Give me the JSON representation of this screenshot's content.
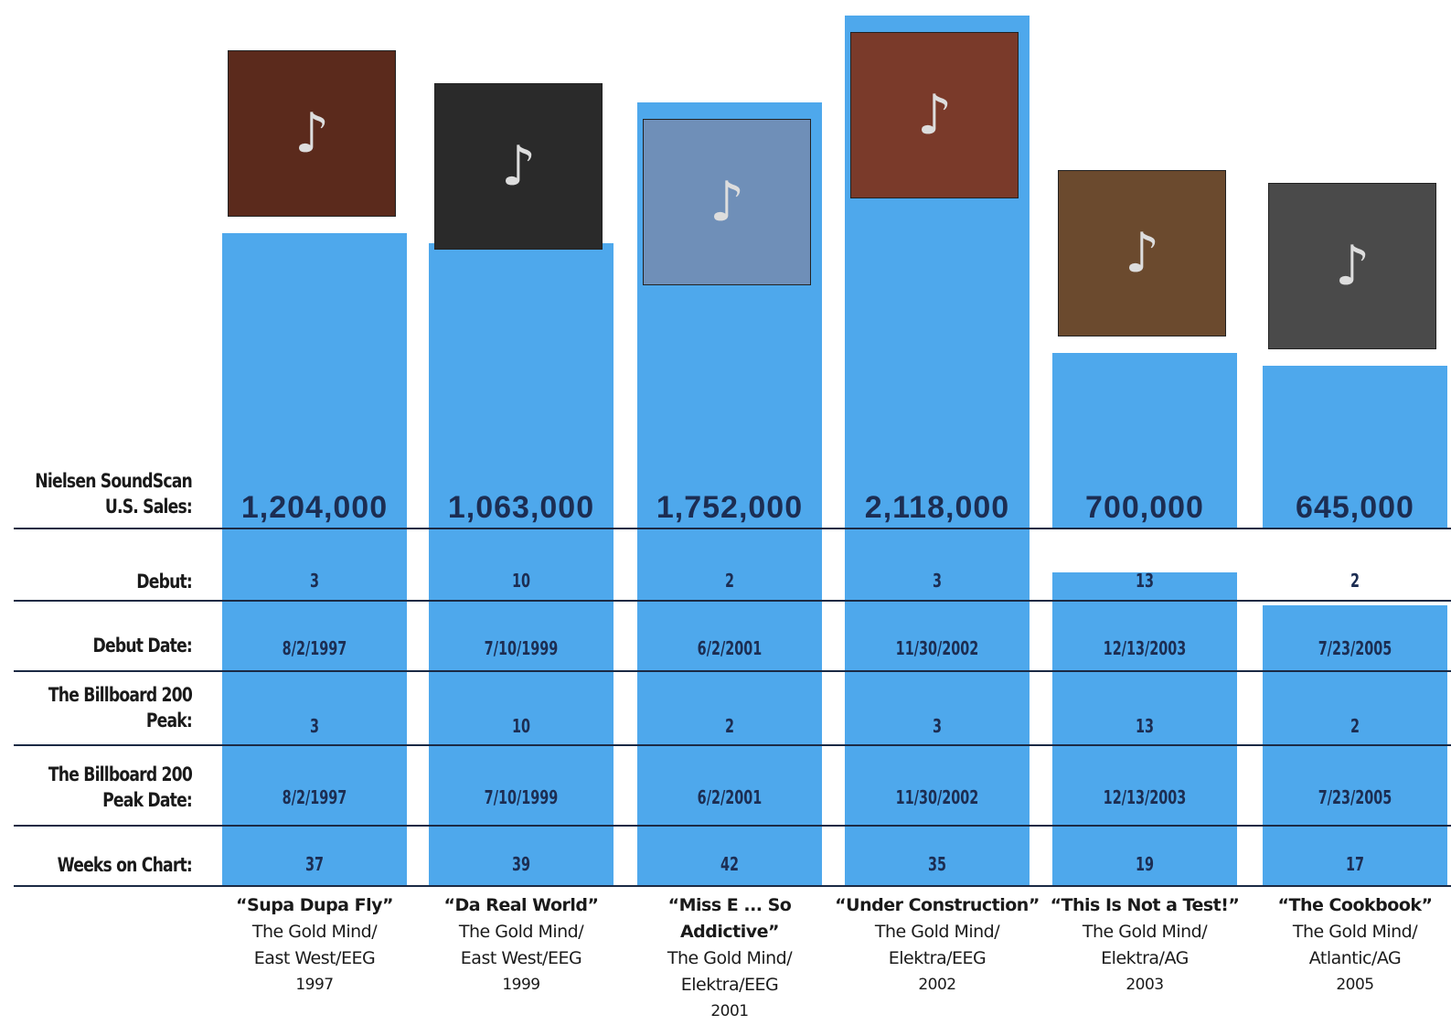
{
  "colors": {
    "bar": "#4ea8ec",
    "rule": "#1b2a44",
    "text": "#1c2d52"
  },
  "row_labels": {
    "sales": [
      "Nielsen SoundScan",
      "U.S. Sales:"
    ],
    "debut": "Debut:",
    "debut_date": "Debut Date:",
    "peak": [
      "The Billboard 200",
      "Peak:"
    ],
    "peak_date": [
      "The Billboard 200",
      "Peak Date:"
    ],
    "weeks": "Weeks on Chart:"
  },
  "chart_data": {
    "type": "bar",
    "categories": [
      "“Supa Dupa Fly”",
      "“Da Real World”",
      "“Miss E ... So Addictive”",
      "“Under Construction”",
      "“This Is Not a Test!”",
      "“The Cookbook”"
    ],
    "values": [
      1204000,
      1063000,
      1752000,
      2118000,
      700000,
      645000
    ],
    "sales_labels": [
      "1,204,000",
      "1,063,000",
      "1,752,000",
      "2,118,000",
      "700,000",
      "645,000"
    ],
    "albums": [
      {
        "title": "“Supa Dupa Fly”",
        "label": [
          "The Gold Mind/",
          "East West/EEG"
        ],
        "year": "1997",
        "debut": "3",
        "debut_date": "8/2/1997",
        "peak": "3",
        "peak_date": "8/2/1997",
        "weeks": "37",
        "weeks_value": 37,
        "cover_icon": "album-cover"
      },
      {
        "title": "“Da Real World”",
        "label": [
          "The Gold Mind/",
          "East West/EEG"
        ],
        "year": "1999",
        "debut": "10",
        "debut_date": "7/10/1999",
        "peak": "10",
        "peak_date": "7/10/1999",
        "weeks": "39",
        "weeks_value": 39,
        "cover_icon": "album-cover"
      },
      {
        "title": "“Miss E ... So Addictive”",
        "label": [
          "The Gold Mind/",
          "Elektra/EEG"
        ],
        "year": "2001",
        "debut": "2",
        "debut_date": "6/2/2001",
        "peak": "2",
        "peak_date": "6/2/2001",
        "weeks": "42",
        "weeks_value": 42,
        "cover_icon": "album-cover"
      },
      {
        "title": "“Under Construction”",
        "label": [
          "The Gold Mind/",
          "Elektra/EEG"
        ],
        "year": "2002",
        "debut": "3",
        "debut_date": "11/30/2002",
        "peak": "3",
        "peak_date": "11/30/2002",
        "weeks": "35",
        "weeks_value": 35,
        "cover_icon": "album-cover"
      },
      {
        "title": "“This Is Not a Test!”",
        "label": [
          "The Gold Mind/",
          "Elektra/AG"
        ],
        "year": "2003",
        "debut": "13",
        "debut_date": "12/13/2003",
        "peak": "13",
        "peak_date": "12/13/2003",
        "weeks": "19",
        "weeks_value": 19,
        "cover_icon": "album-cover"
      },
      {
        "title": "“The Cookbook”",
        "label": [
          "The Gold Mind/",
          "Atlantic/AG"
        ],
        "year": "2005",
        "debut": "2",
        "debut_date": "7/23/2005",
        "peak": "2",
        "peak_date": "7/23/2005",
        "weeks": "17",
        "weeks_value": 17,
        "cover_icon": "album-cover"
      }
    ]
  }
}
